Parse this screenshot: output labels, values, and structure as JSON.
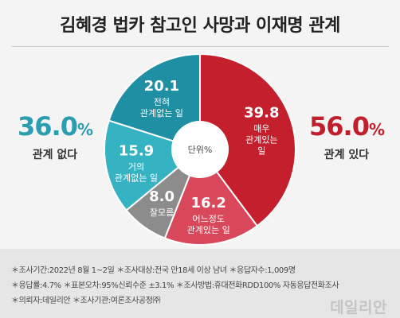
{
  "title": "김혜경 법카 참고인 사망과 이재명 관계",
  "left_summary": {
    "value": "36.0",
    "unit": "%",
    "label": "관계 없다",
    "color": "#2a9db1"
  },
  "right_summary": {
    "value": "56.0",
    "unit": "%",
    "label": "관계 있다",
    "color": "#c0202c"
  },
  "center_label": "단위%",
  "chart_data": {
    "type": "pie",
    "donut": true,
    "unit": "%",
    "slices": [
      {
        "label": [
          "매우",
          "관계있는",
          "일"
        ],
        "value": 39.8,
        "color": "#c41f2d"
      },
      {
        "label": [
          "어느정도",
          "관계있는 일"
        ],
        "value": 16.2,
        "color": "#d9475a"
      },
      {
        "label": [
          "잘모름"
        ],
        "value": 8.0,
        "color": "#8c8c8c"
      },
      {
        "label": [
          "거의",
          "관계없는 일"
        ],
        "value": 15.9,
        "color": "#36b3c3"
      },
      {
        "label": [
          "전혀",
          "관계없는 일"
        ],
        "value": 20.1,
        "color": "#1f8fa3"
      }
    ]
  },
  "notes": [
    "＊조사기간:2022년 8월 1~2일  ＊조사대상:전국 만18세 이상 남녀  ＊응답자수:1,009명",
    "＊응답률:4.7%  ＊표본오차:95%신뢰수준 ±3.1%  ＊조사방법:휴대전화RDD100% 자동응답전화조사",
    "＊의뢰자:데일리안  ＊조사기관:여론조사공정㈜"
  ],
  "watermark": "데일리안"
}
